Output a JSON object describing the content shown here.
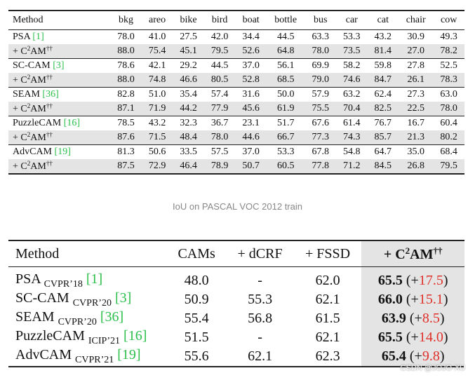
{
  "table1": {
    "header": [
      "Method",
      "bkg",
      "areo",
      "bike",
      "bird",
      "boat",
      "bottle",
      "bus",
      "car",
      "cat",
      "chair",
      "cow"
    ],
    "variant": {
      "prefix": "+ C",
      "sup": "2",
      "suffix": "AM",
      "dagger": "††"
    },
    "ref_open": "[",
    "ref_close": "]",
    "groups": [
      {
        "name": "PSA",
        "ref": "1",
        "values": [
          "78.0",
          "41.0",
          "27.5",
          "42.0",
          "34.4",
          "44.5",
          "63.3",
          "53.3",
          "43.2",
          "30.9",
          "49.3"
        ],
        "bold": [
          9
        ],
        "variant_values": [
          "88.0",
          "75.4",
          "45.1",
          "79.5",
          "52.6",
          "64.8",
          "78.0",
          "73.5",
          "81.4",
          "27.0",
          "78.2"
        ],
        "variant_bold": [
          0,
          1,
          2,
          3,
          4,
          5,
          6,
          7,
          8,
          10
        ]
      },
      {
        "name": "SC-CAM",
        "ref": "3",
        "values": [
          "78.6",
          "42.1",
          "29.2",
          "44.5",
          "37.0",
          "56.1",
          "69.9",
          "58.2",
          "59.8",
          "27.8",
          "52.5"
        ],
        "bold": [
          9
        ],
        "variant_values": [
          "88.0",
          "74.8",
          "46.6",
          "80.5",
          "52.8",
          "68.5",
          "79.0",
          "74.6",
          "84.7",
          "26.1",
          "78.3"
        ],
        "variant_bold": [
          0,
          1,
          2,
          3,
          4,
          5,
          6,
          7,
          8,
          10
        ]
      },
      {
        "name": "SEAM",
        "ref": "36",
        "values": [
          "82.8",
          "51.0",
          "35.4",
          "57.4",
          "31.6",
          "50.0",
          "57.9",
          "63.2",
          "62.4",
          "27.3",
          "63.0"
        ],
        "bold": [
          9
        ],
        "variant_values": [
          "87.1",
          "71.9",
          "44.2",
          "77.9",
          "45.6",
          "61.9",
          "75.5",
          "70.4",
          "82.5",
          "22.5",
          "78.0"
        ],
        "variant_bold": [
          0,
          1,
          2,
          3,
          4,
          5,
          6,
          7,
          8,
          10
        ]
      },
      {
        "name": "PuzzleCAM",
        "ref": "16",
        "values": [
          "78.5",
          "43.2",
          "32.3",
          "36.7",
          "23.1",
          "51.7",
          "67.6",
          "61.4",
          "76.7",
          "16.7",
          "60.4"
        ],
        "bold": [],
        "variant_values": [
          "87.6",
          "71.5",
          "48.4",
          "78.0",
          "44.6",
          "66.7",
          "77.3",
          "74.3",
          "85.7",
          "21.3",
          "80.2"
        ],
        "variant_bold": [
          0,
          1,
          2,
          3,
          4,
          5,
          6,
          7,
          8,
          9,
          10
        ]
      },
      {
        "name": "AdvCAM",
        "ref": "19",
        "values": [
          "81.3",
          "50.6",
          "33.5",
          "57.5",
          "37.0",
          "53.3",
          "67.8",
          "54.8",
          "64.7",
          "35.0",
          "68.4"
        ],
        "bold": [
          9
        ],
        "variant_values": [
          "87.5",
          "72.9",
          "46.4",
          "78.9",
          "50.7",
          "60.5",
          "77.8",
          "71.2",
          "84.5",
          "26.8",
          "79.5"
        ],
        "variant_bold": [
          0,
          1,
          2,
          3,
          4,
          5,
          6,
          7,
          8,
          10
        ]
      }
    ]
  },
  "caption": "IoU on PASCAL VOC 2012 train",
  "table2": {
    "header": [
      "Method",
      "CAMs",
      "+ dCRF",
      "+ FSSD"
    ],
    "ref_open": "[",
    "ref_close": "]",
    "gain_open": "(+",
    "gain_close": ")",
    "rows": [
      {
        "name": "PSA",
        "venue": "CVPR’18",
        "ref": "1",
        "values": [
          "48.0",
          "-",
          "62.0"
        ],
        "result": "65.5",
        "gain": "17.5"
      },
      {
        "name": "SC-CAM",
        "venue": "CVPR’20",
        "ref": "3",
        "values": [
          "50.9",
          "55.3",
          "62.1"
        ],
        "result": "66.0",
        "gain": "15.1"
      },
      {
        "name": "SEAM",
        "venue": "CVPR’20",
        "ref": "36",
        "values": [
          "55.4",
          "56.8",
          "61.5"
        ],
        "result": "63.9",
        "gain": "8.5"
      },
      {
        "name": "PuzzleCAM",
        "venue": "ICIP’21",
        "ref": "16",
        "values": [
          "51.5",
          "-",
          "62.1"
        ],
        "result": "65.5",
        "gain": "14.0"
      },
      {
        "name": "AdvCAM",
        "venue": "CVPR’21",
        "ref": "19",
        "values": [
          "55.6",
          "62.1",
          "62.3"
        ],
        "result": "65.4",
        "gain": "9.8"
      }
    ]
  },
  "watermark": "CSDN @JOJO-XU"
}
